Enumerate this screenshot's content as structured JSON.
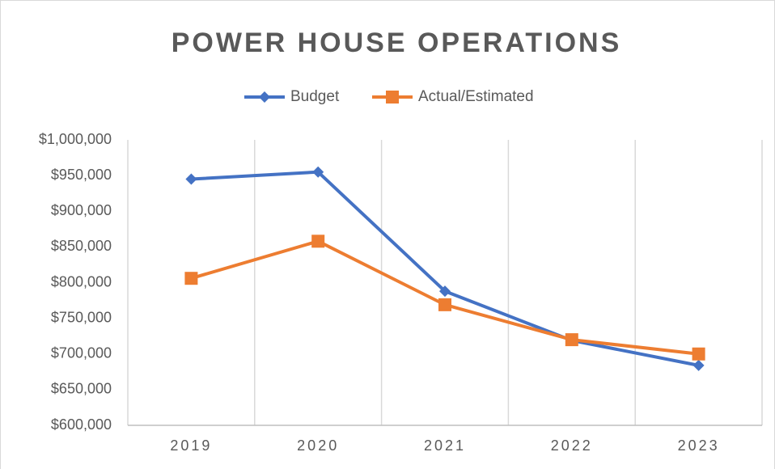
{
  "chart_data": {
    "type": "line",
    "title": "POWER HOUSE OPERATIONS",
    "categories": [
      "2019",
      "2020",
      "2021",
      "2022",
      "2023"
    ],
    "series": [
      {
        "name": "Budget",
        "color": "#4472c4",
        "marker": "diamond",
        "values": [
          945000,
          955000,
          788000,
          719000,
          684000
        ]
      },
      {
        "name": "Actual/Estimated",
        "color": "#ed7d31",
        "marker": "square",
        "values": [
          806000,
          858000,
          769000,
          720000,
          700000
        ]
      }
    ],
    "ylim": [
      600000,
      1000000
    ],
    "yticks": [
      {
        "value": 600000,
        "label": "$600,000"
      },
      {
        "value": 650000,
        "label": "$650,000"
      },
      {
        "value": 700000,
        "label": "$700,000"
      },
      {
        "value": 750000,
        "label": "$750,000"
      },
      {
        "value": 800000,
        "label": "$800,000"
      },
      {
        "value": 850000,
        "label": "$850,000"
      },
      {
        "value": 900000,
        "label": "$900,000"
      },
      {
        "value": 950000,
        "label": "$950,000"
      },
      {
        "value": 1000000,
        "label": "$1,000,000"
      }
    ],
    "legend": "top"
  }
}
